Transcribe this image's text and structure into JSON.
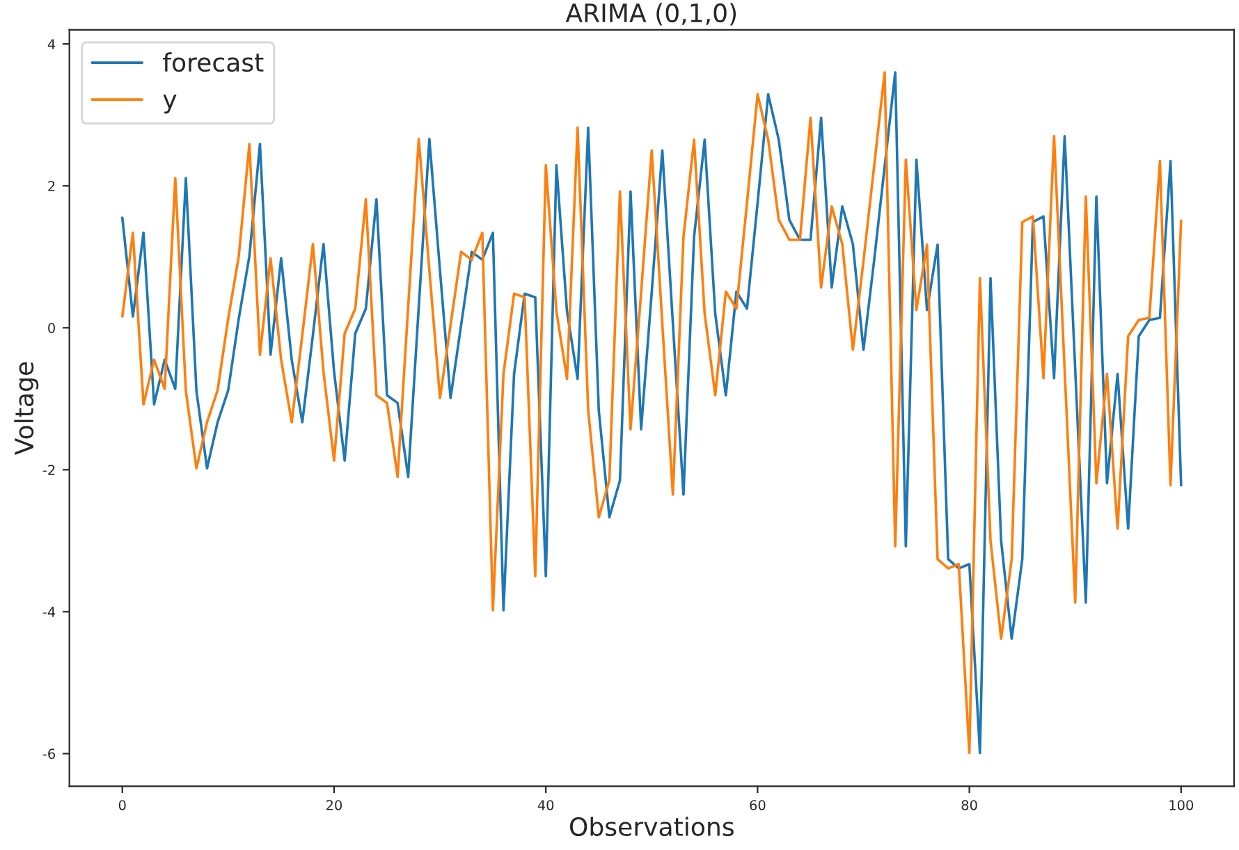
{
  "chart_data": {
    "type": "line",
    "title": "ARIMA (0,1,0)",
    "xlabel": "Observations",
    "ylabel": "Voltage",
    "x": [
      0,
      1,
      2,
      3,
      4,
      5,
      6,
      7,
      8,
      9,
      10,
      11,
      12,
      13,
      14,
      15,
      16,
      17,
      18,
      19,
      20,
      21,
      22,
      23,
      24,
      25,
      26,
      27,
      28,
      29,
      30,
      31,
      32,
      33,
      34,
      35,
      36,
      37,
      38,
      39,
      40,
      41,
      42,
      43,
      44,
      45,
      46,
      47,
      48,
      49,
      50,
      51,
      52,
      53,
      54,
      55,
      56,
      57,
      58,
      59,
      60,
      61,
      62,
      63,
      64,
      65,
      66,
      67,
      68,
      69,
      70,
      71,
      72,
      73,
      74,
      75,
      76,
      77,
      78,
      79,
      80,
      81,
      82,
      83,
      84,
      85,
      86,
      87,
      88,
      89,
      90,
      91,
      92,
      93,
      94,
      95,
      96,
      97,
      98,
      99,
      100
    ],
    "series": [
      {
        "name": "forecast",
        "color": "#1f77b4",
        "values": [
          1.55,
          0.16,
          1.34,
          -1.08,
          -0.45,
          -0.86,
          2.11,
          -0.89,
          -1.98,
          -1.33,
          -0.88,
          0.13,
          1.01,
          2.59,
          -0.38,
          0.98,
          -0.45,
          -1.33,
          -0.1,
          1.18,
          -0.62,
          -1.87,
          -0.08,
          0.27,
          1.81,
          -0.95,
          -1.06,
          -2.1,
          0.3,
          2.66,
          0.81,
          -0.99,
          0.04,
          1.07,
          0.96,
          1.34,
          -3.98,
          -0.65,
          0.48,
          0.43,
          -3.5,
          2.29,
          0.23,
          -0.72,
          2.82,
          -1.16,
          -2.67,
          -2.15,
          1.92,
          -1.43,
          0.5,
          2.5,
          0.06,
          -2.35,
          1.28,
          2.65,
          0.2,
          -0.95,
          0.51,
          0.27,
          1.76,
          3.29,
          2.65,
          1.52,
          1.24,
          1.24,
          2.96,
          0.57,
          1.71,
          1.18,
          -0.31,
          0.94,
          2.27,
          3.6,
          -3.08,
          2.37,
          0.25,
          1.17,
          -3.26,
          -3.39,
          -3.33,
          -5.99,
          0.7,
          -3.0,
          -4.38,
          -3.26,
          1.49,
          1.57,
          -0.71,
          2.7,
          -0.59,
          -3.87,
          1.85,
          -2.19,
          -0.65,
          -2.83,
          -0.12,
          0.11,
          0.14,
          2.35,
          -2.22
        ]
      },
      {
        "name": "y",
        "color": "#ff7f0e",
        "values": [
          0.16,
          1.34,
          -1.08,
          -0.45,
          -0.86,
          2.11,
          -0.89,
          -1.98,
          -1.33,
          -0.88,
          0.13,
          1.01,
          2.59,
          -0.38,
          0.98,
          -0.45,
          -1.33,
          -0.1,
          1.18,
          -0.62,
          -1.87,
          -0.08,
          0.27,
          1.81,
          -0.95,
          -1.06,
          -2.1,
          0.3,
          2.66,
          0.81,
          -0.99,
          0.04,
          1.07,
          0.96,
          1.34,
          -3.98,
          -0.65,
          0.48,
          0.43,
          -3.5,
          2.29,
          0.23,
          -0.72,
          2.82,
          -1.16,
          -2.67,
          -2.15,
          1.92,
          -1.43,
          0.5,
          2.5,
          0.06,
          -2.35,
          1.28,
          2.65,
          0.2,
          -0.95,
          0.51,
          0.27,
          1.76,
          3.29,
          2.65,
          1.52,
          1.24,
          1.24,
          2.96,
          0.57,
          1.71,
          1.18,
          -0.31,
          0.94,
          2.27,
          3.6,
          -3.08,
          2.37,
          0.25,
          1.17,
          -3.26,
          -3.39,
          -3.33,
          -5.99,
          0.7,
          -3.0,
          -4.38,
          -3.26,
          1.49,
          1.57,
          -0.71,
          2.7,
          -0.59,
          -3.87,
          1.85,
          -2.19,
          -0.65,
          -2.83,
          -0.12,
          0.11,
          0.14,
          2.35,
          -2.22,
          1.51
        ]
      }
    ],
    "xlim": [
      -5,
      105
    ],
    "ylim": [
      -6.46,
      4.2
    ],
    "xticks": [
      0,
      20,
      40,
      60,
      80,
      100
    ],
    "yticks": [
      -6,
      -4,
      -2,
      0,
      2,
      4
    ],
    "legend": "top left",
    "grid": false,
    "marker": "none",
    "line_style": "solid"
  }
}
